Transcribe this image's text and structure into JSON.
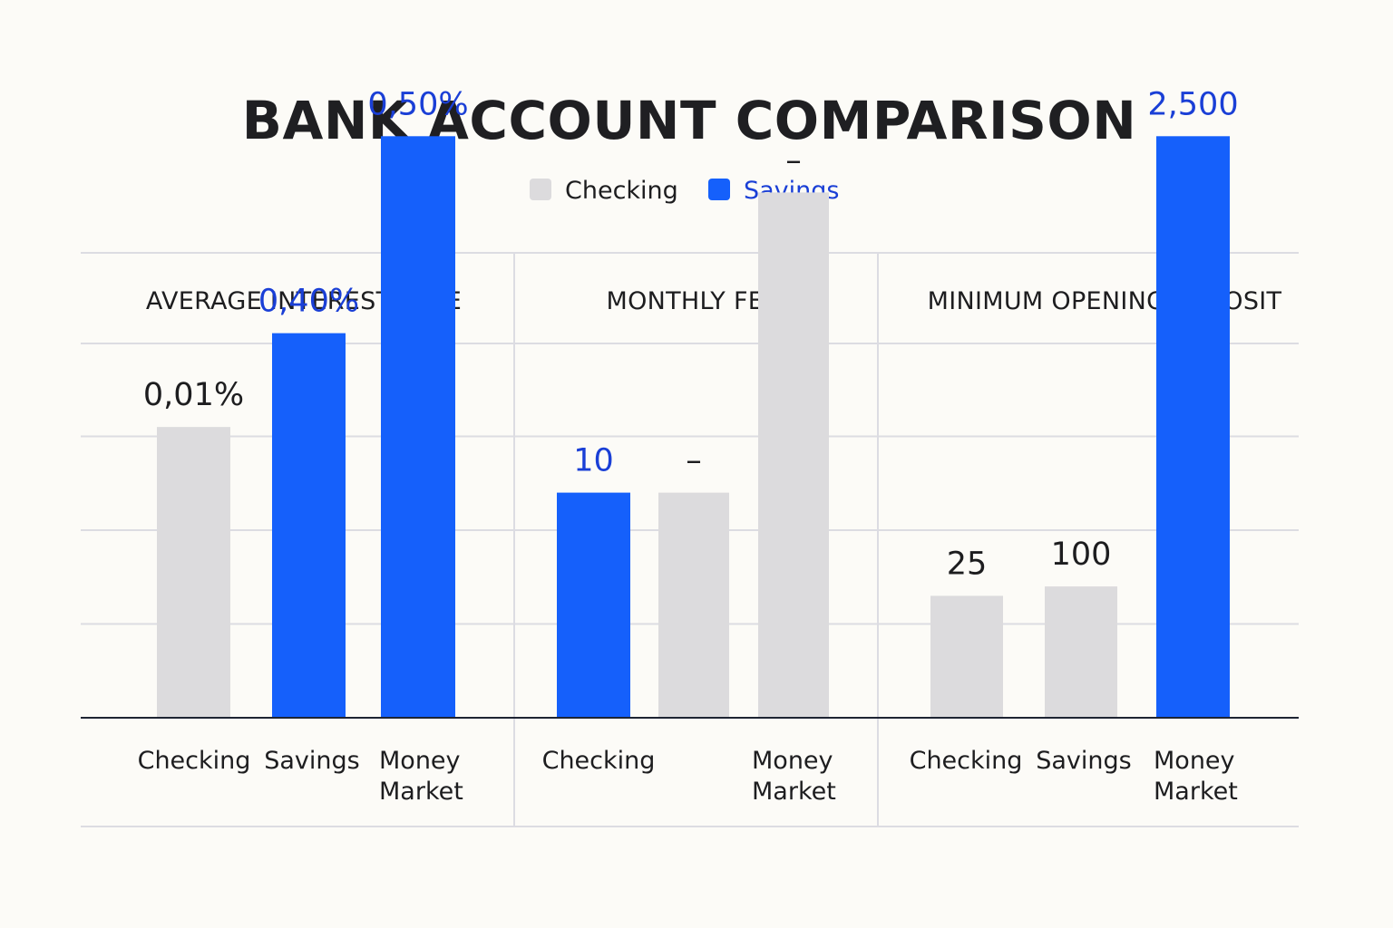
{
  "title": "BANK ACCOUNT COMPARISON",
  "legend": [
    {
      "label": "Checking",
      "color": "#dcdbdd",
      "text_color": "#1d1d1f"
    },
    {
      "label": "Savings",
      "color": "#1560fb",
      "text_color": "#1a3fd6"
    }
  ],
  "colors": {
    "checking": "#dcdbdd",
    "savings": "#1560fb",
    "savings_label": "#1a3fd6",
    "dark_label": "#1d1d1f"
  },
  "chart_data": [
    {
      "type": "bar",
      "title": "AVERAGE INTEREST RATE",
      "bars": [
        {
          "category": [
            "Checking"
          ],
          "value": 3.1,
          "label": "0,01%",
          "style": "checking"
        },
        {
          "category": [
            "Savings"
          ],
          "value": 4.1,
          "label": "0,40%",
          "style": "savings"
        },
        {
          "category": [
            "Money",
            "Market"
          ],
          "value": 6.2,
          "label": "0,50%",
          "style": "savings"
        }
      ]
    },
    {
      "type": "bar",
      "title": "MONTHLY FEE",
      "bars": [
        {
          "category": [
            "Checking"
          ],
          "value": 2.4,
          "label": "10",
          "style": "savings"
        },
        {
          "category": [],
          "value": 2.4,
          "label": "–",
          "style": "checking"
        },
        {
          "category": [
            "Money",
            "Market"
          ],
          "value": 5.6,
          "label": "–",
          "style": "checking"
        }
      ]
    },
    {
      "type": "bar",
      "title": "MINIMUM OPENING DEPOSIT",
      "bars": [
        {
          "category": [
            "Checking"
          ],
          "value": 1.3,
          "label": "25",
          "style": "checking"
        },
        {
          "category": [
            "Savings"
          ],
          "value": 1.4,
          "label": "100",
          "style": "checking"
        },
        {
          "category": [
            "Money",
            "Market"
          ],
          "value": 6.2,
          "label": "2,500",
          "style": "savings"
        }
      ]
    }
  ]
}
